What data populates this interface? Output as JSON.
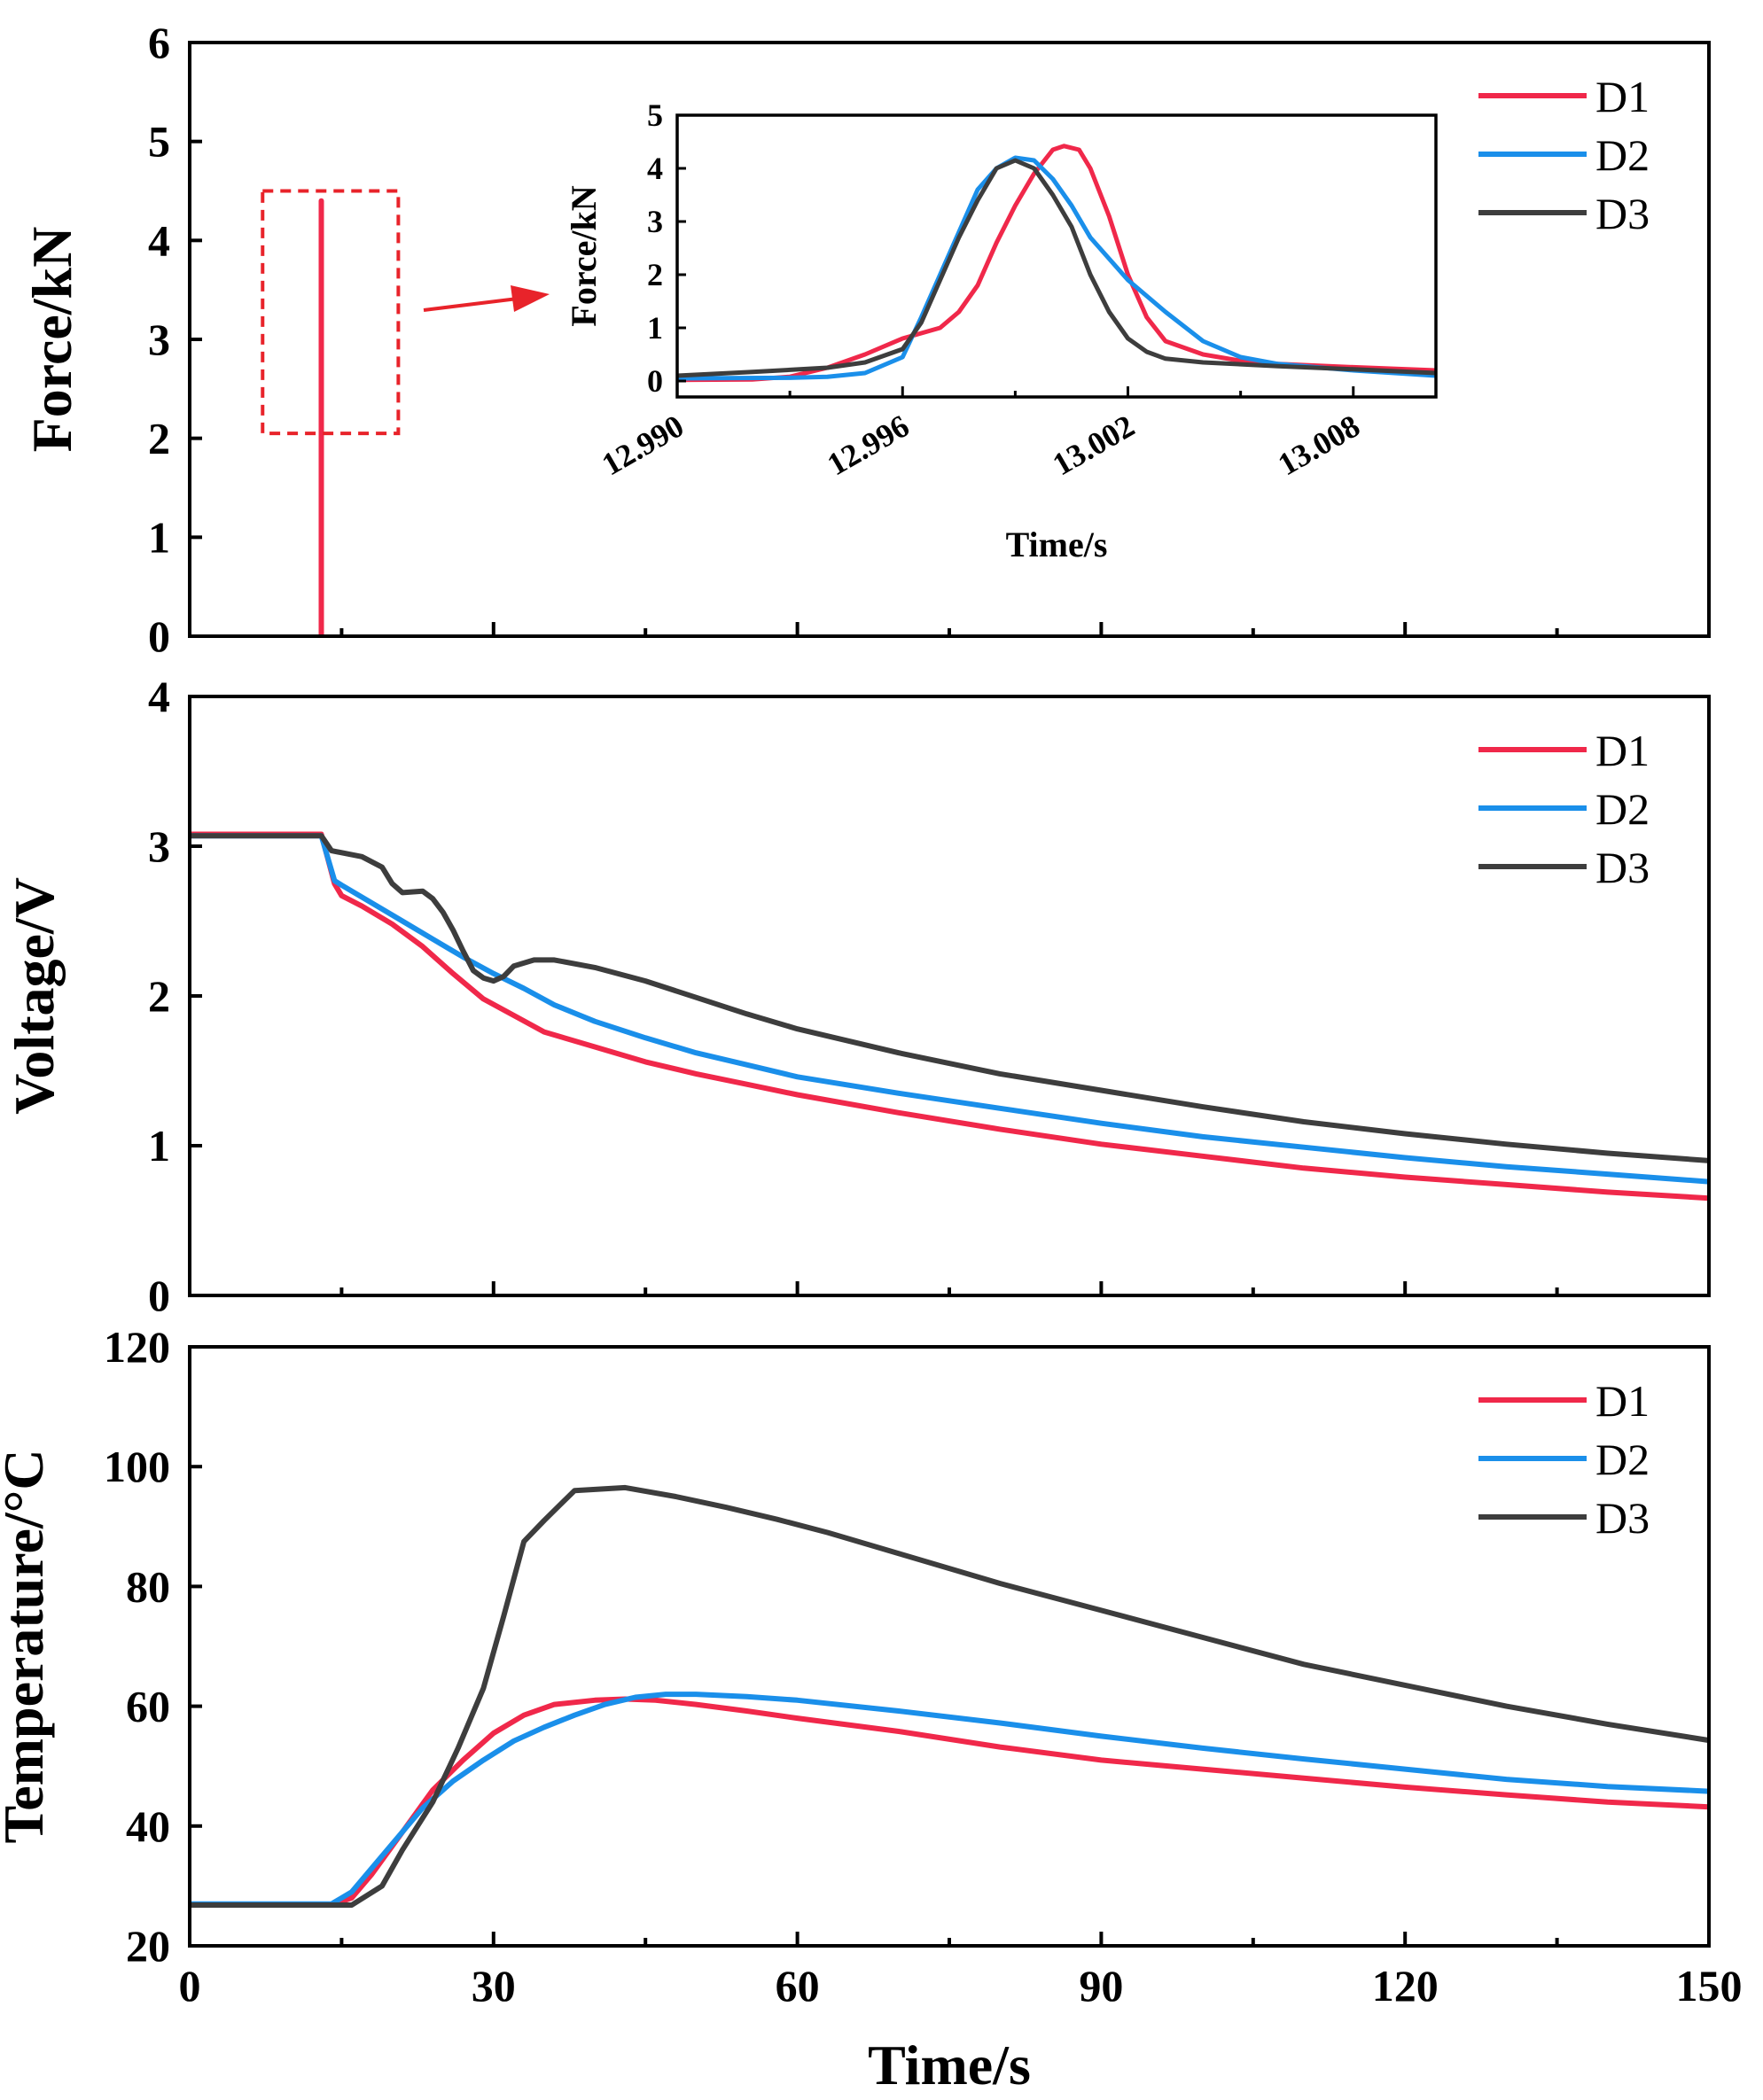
{
  "chart_data": [
    {
      "type": "line",
      "panel": "force",
      "ylabel": "Force/kN",
      "xlim": [
        0,
        150
      ],
      "ylim": [
        0,
        6
      ],
      "xticks": [
        0,
        30,
        60,
        90,
        120,
        150
      ],
      "xticks_labeled": false,
      "yticks": [
        0,
        1,
        2,
        3,
        4,
        5,
        6
      ],
      "legend": {
        "placement": "top-right",
        "entries": [
          "D1",
          "D2",
          "D3"
        ]
      },
      "grid": false,
      "series": [
        {
          "name": "D1",
          "color": "#f0284a",
          "points": [
            [
              13.0,
              0
            ],
            [
              13.0,
              4.4
            ]
          ]
        }
      ],
      "annotations": {
        "zoom_box": {
          "x": [
            7.2,
            20.6
          ],
          "y": [
            2.05,
            4.5
          ]
        },
        "arrow": "zoom-box-to-inset"
      },
      "inset": {
        "type": "line",
        "xlabel": "Time/s",
        "ylabel": "Force/kN",
        "xlim": [
          12.99,
          13.0102
        ],
        "ylim": [
          -0.3,
          5
        ],
        "xticks": [
          12.99,
          12.996,
          13.002,
          13.008
        ],
        "xtick_labels": [
          "12.990",
          "12.996",
          "13.002",
          "13.008"
        ],
        "yticks": [
          0,
          1,
          2,
          3,
          4,
          5
        ],
        "series": [
          {
            "name": "D1",
            "color": "#f0284a",
            "points": [
              [
                12.99,
                0.02
              ],
              [
                12.992,
                0.03
              ],
              [
                12.993,
                0.08
              ],
              [
                12.994,
                0.25
              ],
              [
                12.995,
                0.5
              ],
              [
                12.996,
                0.8
              ],
              [
                12.997,
                1.0
              ],
              [
                12.9975,
                1.3
              ],
              [
                12.998,
                1.8
              ],
              [
                12.9985,
                2.6
              ],
              [
                12.999,
                3.3
              ],
              [
                12.9995,
                3.9
              ],
              [
                13.0,
                4.35
              ],
              [
                13.0003,
                4.42
              ],
              [
                13.0007,
                4.35
              ],
              [
                13.001,
                4.0
              ],
              [
                13.0015,
                3.1
              ],
              [
                13.002,
                2.0
              ],
              [
                13.0025,
                1.2
              ],
              [
                13.003,
                0.75
              ],
              [
                13.004,
                0.5
              ],
              [
                13.005,
                0.38
              ],
              [
                13.006,
                0.32
              ],
              [
                13.008,
                0.26
              ],
              [
                13.0102,
                0.2
              ]
            ]
          },
          {
            "name": "D2",
            "color": "#1a8fea",
            "points": [
              [
                12.99,
                0.05
              ],
              [
                12.993,
                0.06
              ],
              [
                12.994,
                0.08
              ],
              [
                12.995,
                0.15
              ],
              [
                12.996,
                0.45
              ],
              [
                12.9965,
                1.2
              ],
              [
                12.997,
                2.0
              ],
              [
                12.9975,
                2.8
              ],
              [
                12.998,
                3.6
              ],
              [
                12.9985,
                4.0
              ],
              [
                12.999,
                4.2
              ],
              [
                12.9995,
                4.15
              ],
              [
                13.0,
                3.8
              ],
              [
                13.0005,
                3.3
              ],
              [
                13.001,
                2.7
              ],
              [
                13.0015,
                2.3
              ],
              [
                13.002,
                1.9
              ],
              [
                13.003,
                1.3
              ],
              [
                13.004,
                0.75
              ],
              [
                13.005,
                0.45
              ],
              [
                13.006,
                0.32
              ],
              [
                13.008,
                0.2
              ],
              [
                13.0102,
                0.1
              ]
            ]
          },
          {
            "name": "D3",
            "color": "#3d3d3d",
            "points": [
              [
                12.99,
                0.1
              ],
              [
                12.992,
                0.17
              ],
              [
                12.994,
                0.25
              ],
              [
                12.995,
                0.35
              ],
              [
                12.996,
                0.6
              ],
              [
                12.9965,
                1.1
              ],
              [
                12.997,
                1.9
              ],
              [
                12.9975,
                2.7
              ],
              [
                12.998,
                3.4
              ],
              [
                12.9985,
                4.0
              ],
              [
                12.999,
                4.15
              ],
              [
                12.9995,
                4.0
              ],
              [
                13.0,
                3.5
              ],
              [
                13.0005,
                2.9
              ],
              [
                13.001,
                2.0
              ],
              [
                13.0015,
                1.3
              ],
              [
                13.002,
                0.8
              ],
              [
                13.0025,
                0.55
              ],
              [
                13.003,
                0.42
              ],
              [
                13.004,
                0.35
              ],
              [
                13.006,
                0.28
              ],
              [
                13.008,
                0.22
              ],
              [
                13.0102,
                0.15
              ]
            ]
          }
        ]
      }
    },
    {
      "type": "line",
      "panel": "voltage",
      "ylabel": "Voltage/V",
      "xlim": [
        0,
        150
      ],
      "ylim": [
        0,
        4
      ],
      "xticks": [
        0,
        30,
        60,
        90,
        120,
        150
      ],
      "xticks_labeled": false,
      "yticks": [
        0,
        1,
        2,
        3,
        4
      ],
      "legend": {
        "placement": "top-right",
        "entries": [
          "D1",
          "D2",
          "D3"
        ]
      },
      "grid": false,
      "series": [
        {
          "name": "D1",
          "color": "#f0284a",
          "points": [
            [
              0,
              3.08
            ],
            [
              13,
              3.08
            ],
            [
              14.3,
              2.75
            ],
            [
              15,
              2.67
            ],
            [
              17,
              2.6
            ],
            [
              20,
              2.48
            ],
            [
              23,
              2.33
            ],
            [
              26,
              2.15
            ],
            [
              29,
              1.98
            ],
            [
              32,
              1.87
            ],
            [
              35,
              1.76
            ],
            [
              40,
              1.66
            ],
            [
              45,
              1.56
            ],
            [
              50,
              1.48
            ],
            [
              55,
              1.41
            ],
            [
              60,
              1.34
            ],
            [
              70,
              1.22
            ],
            [
              80,
              1.11
            ],
            [
              90,
              1.01
            ],
            [
              100,
              0.93
            ],
            [
              110,
              0.85
            ],
            [
              120,
              0.79
            ],
            [
              130,
              0.74
            ],
            [
              140,
              0.69
            ],
            [
              150,
              0.65
            ]
          ]
        },
        {
          "name": "D2",
          "color": "#1a8fea",
          "points": [
            [
              0,
              3.07
            ],
            [
              13,
              3.07
            ],
            [
              14.3,
              2.77
            ],
            [
              15,
              2.74
            ],
            [
              18,
              2.62
            ],
            [
              21,
              2.5
            ],
            [
              24,
              2.38
            ],
            [
              27,
              2.26
            ],
            [
              30,
              2.15
            ],
            [
              33,
              2.05
            ],
            [
              36,
              1.94
            ],
            [
              40,
              1.83
            ],
            [
              45,
              1.72
            ],
            [
              50,
              1.62
            ],
            [
              55,
              1.54
            ],
            [
              60,
              1.46
            ],
            [
              70,
              1.35
            ],
            [
              80,
              1.25
            ],
            [
              90,
              1.15
            ],
            [
              100,
              1.06
            ],
            [
              110,
              0.99
            ],
            [
              120,
              0.92
            ],
            [
              130,
              0.86
            ],
            [
              140,
              0.81
            ],
            [
              150,
              0.76
            ]
          ]
        },
        {
          "name": "D3",
          "color": "#3d3d3d",
          "points": [
            [
              0,
              3.07
            ],
            [
              13,
              3.07
            ],
            [
              14,
              2.97
            ],
            [
              17,
              2.93
            ],
            [
              19,
              2.86
            ],
            [
              20,
              2.75
            ],
            [
              21,
              2.69
            ],
            [
              23,
              2.7
            ],
            [
              24,
              2.65
            ],
            [
              25,
              2.56
            ],
            [
              26,
              2.44
            ],
            [
              27,
              2.3
            ],
            [
              28,
              2.17
            ],
            [
              29,
              2.12
            ],
            [
              30,
              2.1
            ],
            [
              31,
              2.13
            ],
            [
              32,
              2.2
            ],
            [
              34,
              2.24
            ],
            [
              36,
              2.24
            ],
            [
              40,
              2.19
            ],
            [
              45,
              2.1
            ],
            [
              50,
              1.99
            ],
            [
              55,
              1.88
            ],
            [
              60,
              1.78
            ],
            [
              70,
              1.62
            ],
            [
              80,
              1.48
            ],
            [
              90,
              1.37
            ],
            [
              100,
              1.26
            ],
            [
              110,
              1.16
            ],
            [
              120,
              1.08
            ],
            [
              130,
              1.01
            ],
            [
              140,
              0.95
            ],
            [
              150,
              0.9
            ]
          ]
        }
      ]
    },
    {
      "type": "line",
      "panel": "temperature",
      "xlabel": "Time/s",
      "ylabel": "Temperature/°C",
      "xlim": [
        0,
        150
      ],
      "ylim": [
        20,
        120
      ],
      "xticks": [
        0,
        30,
        60,
        90,
        120,
        150
      ],
      "xticks_labeled": true,
      "yticks": [
        20,
        40,
        60,
        80,
        100,
        120
      ],
      "legend": {
        "placement": "top-right",
        "entries": [
          "D1",
          "D2",
          "D3"
        ]
      },
      "grid": false,
      "series": [
        {
          "name": "D1",
          "color": "#f0284a",
          "points": [
            [
              0,
              26.8
            ],
            [
              14,
              26.8
            ],
            [
              16,
              28
            ],
            [
              18,
              32
            ],
            [
              21,
              39
            ],
            [
              24,
              46
            ],
            [
              27,
              51
            ],
            [
              30,
              55.5
            ],
            [
              33,
              58.5
            ],
            [
              36,
              60.3
            ],
            [
              40,
              61
            ],
            [
              43,
              61.2
            ],
            [
              46,
              61
            ],
            [
              50,
              60.3
            ],
            [
              55,
              59.2
            ],
            [
              60,
              58
            ],
            [
              70,
              55.8
            ],
            [
              80,
              53.2
            ],
            [
              90,
              51
            ],
            [
              100,
              49.5
            ],
            [
              110,
              48
            ],
            [
              120,
              46.5
            ],
            [
              130,
              45.2
            ],
            [
              140,
              44
            ],
            [
              150,
              43.2
            ]
          ]
        },
        {
          "name": "D2",
          "color": "#1a8fea",
          "points": [
            [
              0,
              27
            ],
            [
              14,
              27
            ],
            [
              16,
              29
            ],
            [
              18,
              33
            ],
            [
              20,
              37
            ],
            [
              23,
              43
            ],
            [
              26,
              47.5
            ],
            [
              29,
              51
            ],
            [
              32,
              54.2
            ],
            [
              35,
              56.5
            ],
            [
              38,
              58.5
            ],
            [
              41,
              60.3
            ],
            [
              44,
              61.5
            ],
            [
              47,
              62
            ],
            [
              50,
              62
            ],
            [
              55,
              61.6
            ],
            [
              60,
              61
            ],
            [
              70,
              59.2
            ],
            [
              80,
              57.2
            ],
            [
              90,
              55
            ],
            [
              100,
              53
            ],
            [
              110,
              51.2
            ],
            [
              120,
              49.5
            ],
            [
              130,
              47.8
            ],
            [
              140,
              46.6
            ],
            [
              150,
              45.8
            ]
          ]
        },
        {
          "name": "D3",
          "color": "#3d3d3d",
          "points": [
            [
              0,
              26.8
            ],
            [
              16,
              26.8
            ],
            [
              19,
              30
            ],
            [
              21,
              36
            ],
            [
              24,
              44
            ],
            [
              26.5,
              53
            ],
            [
              29,
              63
            ],
            [
              31,
              75
            ],
            [
              33,
              87.5
            ],
            [
              35,
              91
            ],
            [
              38,
              96
            ],
            [
              43,
              96.5
            ],
            [
              48,
              95
            ],
            [
              53,
              93.2
            ],
            [
              58,
              91.2
            ],
            [
              63,
              89
            ],
            [
              70,
              85.5
            ],
            [
              80,
              80.5
            ],
            [
              90,
              76
            ],
            [
              100,
              71.5
            ],
            [
              110,
              67
            ],
            [
              120,
              63.5
            ],
            [
              130,
              60
            ],
            [
              140,
              57
            ],
            [
              150,
              54.3
            ]
          ]
        }
      ]
    }
  ]
}
